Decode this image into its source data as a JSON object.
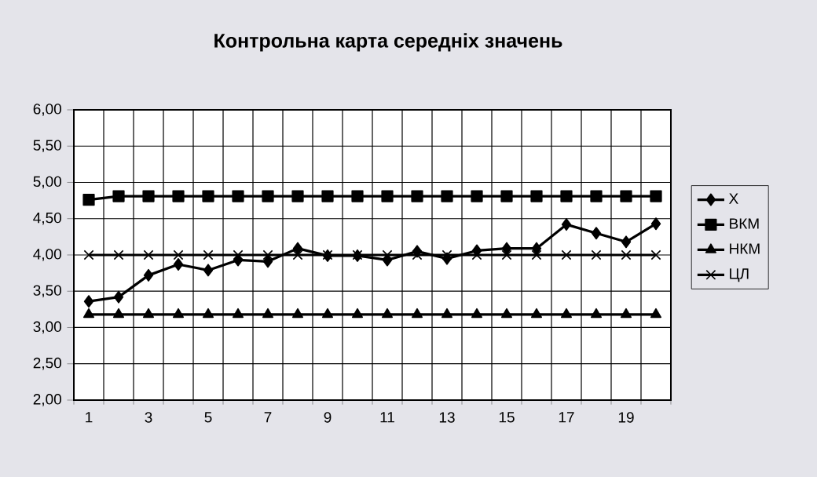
{
  "chart_data": {
    "type": "line",
    "title": "Контрольна карта середніх значень",
    "categories": [
      "1",
      null,
      "3",
      null,
      "5",
      null,
      "7",
      null,
      "9",
      null,
      "11",
      null,
      "13",
      null,
      "15",
      null,
      "17",
      null,
      "19",
      null
    ],
    "series": [
      {
        "name": "X",
        "color": "#000000",
        "marker": "diamond",
        "values": [
          3.36,
          3.42,
          3.72,
          3.87,
          3.79,
          3.93,
          3.91,
          4.09,
          3.99,
          3.99,
          3.93,
          4.05,
          3.95,
          4.06,
          4.09,
          4.09,
          4.42,
          4.3,
          4.18,
          4.43
        ]
      },
      {
        "name": "ВКМ",
        "color": "#000000",
        "marker": "square",
        "values": [
          4.76,
          4.81,
          4.81,
          4.81,
          4.81,
          4.81,
          4.81,
          4.81,
          4.81,
          4.81,
          4.81,
          4.81,
          4.81,
          4.81,
          4.81,
          4.81,
          4.81,
          4.81,
          4.81,
          4.81
        ]
      },
      {
        "name": "НКМ",
        "color": "#000000",
        "marker": "triangle",
        "values": [
          3.18,
          3.18,
          3.18,
          3.18,
          3.18,
          3.18,
          3.18,
          3.18,
          3.18,
          3.18,
          3.18,
          3.18,
          3.18,
          3.18,
          3.18,
          3.18,
          3.18,
          3.18,
          3.18,
          3.18
        ]
      },
      {
        "name": "ЦЛ",
        "color": "#000000",
        "marker": "cross",
        "values": [
          4.0,
          4.0,
          4.0,
          4.0,
          4.0,
          4.0,
          4.0,
          4.0,
          4.0,
          4.0,
          4.0,
          4.0,
          4.0,
          4.0,
          4.0,
          4.0,
          4.0,
          4.0,
          4.0,
          4.0
        ]
      }
    ],
    "ylim": [
      2.0,
      6.0
    ],
    "yticks": [
      {
        "value": 2.0,
        "label": "2,00"
      },
      {
        "value": 2.5,
        "label": "2,50"
      },
      {
        "value": 3.0,
        "label": "3,00"
      },
      {
        "value": 3.5,
        "label": "3,50"
      },
      {
        "value": 4.0,
        "label": "4,00"
      },
      {
        "value": 4.5,
        "label": "4,50"
      },
      {
        "value": 5.0,
        "label": "5,00"
      },
      {
        "value": 5.5,
        "label": "5,50"
      },
      {
        "value": 6.0,
        "label": "6,00"
      }
    ],
    "grid": true,
    "legend": "right",
    "line_style": "solid"
  }
}
